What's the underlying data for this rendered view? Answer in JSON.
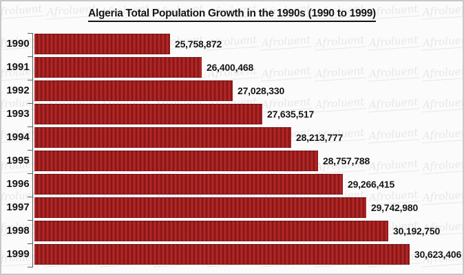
{
  "title": "Algeria Total Population Growth in the 1990s (1990 to 1999)",
  "watermark": {
    "text": "Afroluent"
  },
  "colors": {
    "bar_light": "#b02828",
    "bar_dark": "#8d1616",
    "text": "#151515",
    "axis": "#5a5a5a",
    "watermark": "#e8e5e5",
    "frame_border": "#c8c8c8",
    "bg": "#fcfbfb"
  },
  "chart_data": {
    "type": "bar",
    "orientation": "horizontal",
    "title": "Algeria Total Population Growth in the 1990s (1990 to 1999)",
    "xlabel": "",
    "ylabel": "",
    "categories": [
      "1990",
      "1991",
      "1992",
      "1993",
      "1994",
      "1995",
      "1996",
      "1997",
      "1998",
      "1999"
    ],
    "values": [
      25758872,
      26400468,
      27028330,
      27635517,
      28213777,
      28757788,
      29266415,
      29742980,
      30192750,
      30623406
    ],
    "value_labels": [
      "25,758,872",
      "26,400,468",
      "27,028,330",
      "27,635,517",
      "28,213,777",
      "28,757,788",
      "29,266,415",
      "29,742,980",
      "30,192,750",
      "30,623,406"
    ],
    "xlim": [
      23000000,
      31000000
    ],
    "grid": false,
    "legend": false,
    "bar_color": "#9f1d1d"
  }
}
